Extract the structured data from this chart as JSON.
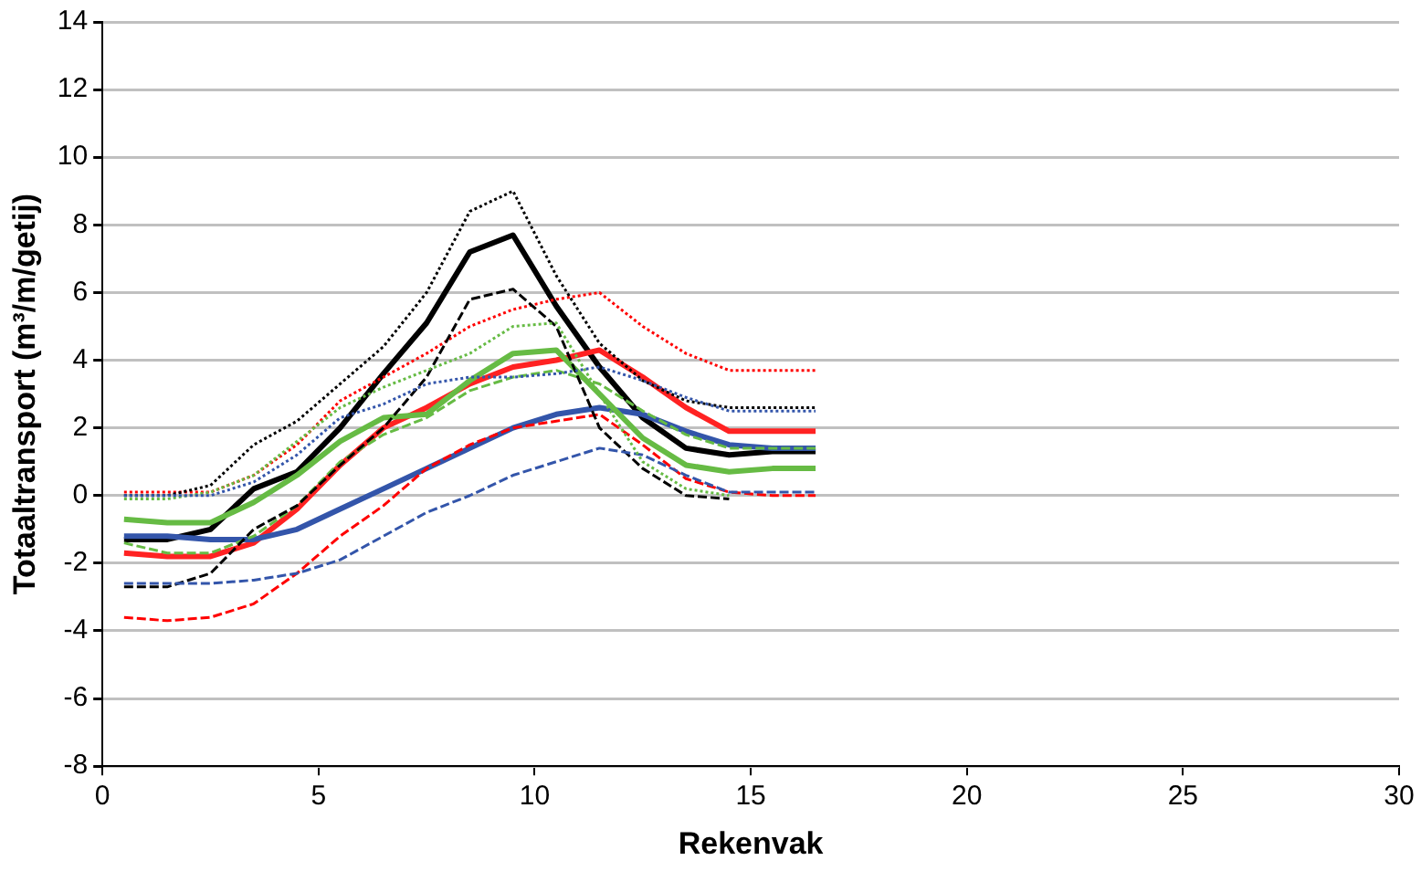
{
  "chart_data": {
    "type": "line",
    "xlabel": "Rekenvak",
    "ylabel": "Totaaltransport (m³/m/getij)",
    "x": [
      0.5,
      1.5,
      2.5,
      3.5,
      4.5,
      5.5,
      6.5,
      7.5,
      8.5,
      9.5,
      10.5,
      11.5,
      12.5,
      13.5,
      14.5,
      15.5,
      16.5
    ],
    "xlim": [
      0,
      30
    ],
    "xticks": [
      0,
      5,
      10,
      15,
      20,
      25,
      30
    ],
    "ylim": [
      -8,
      14
    ],
    "yticks": [
      -8,
      -6,
      -4,
      -2,
      0,
      2,
      4,
      6,
      8,
      10,
      12,
      14
    ],
    "grid": "y",
    "legend": false,
    "marker": "none",
    "series": [
      {
        "color": "#3355aa",
        "line_style": "dotted",
        "values": [
          0,
          0,
          0,
          0.4,
          1.2,
          2.3,
          2.7,
          3.3,
          3.5,
          3.5,
          3.6,
          3.8,
          3.4,
          2.9,
          2.5,
          2.5,
          2.5
        ]
      },
      {
        "color": "#66bb44",
        "line_style": "dotted",
        "values": [
          -0.1,
          -0.1,
          0.1,
          0.6,
          1.6,
          2.6,
          3.2,
          3.7,
          4.2,
          5.0,
          5.1,
          3.0,
          1.0,
          0.2,
          0.0,
          null,
          null
        ]
      },
      {
        "color": "#3355aa",
        "line_style": "dashed",
        "values": [
          -2.6,
          -2.6,
          -2.6,
          -2.5,
          -2.3,
          -1.9,
          -1.2,
          -0.5,
          0,
          0.6,
          1.0,
          1.4,
          1.2,
          0.6,
          0.1,
          0.1,
          0.1
        ]
      },
      {
        "color": "#000000",
        "line_style": "dotted",
        "values": [
          0,
          0,
          0.3,
          1.5,
          2.2,
          3.3,
          4.4,
          6.0,
          8.4,
          9.0,
          6.5,
          4.5,
          3.4,
          2.8,
          2.6,
          2.6,
          2.6
        ]
      },
      {
        "color": "#000000",
        "line_style": "dashed",
        "values": [
          -2.7,
          -2.7,
          -2.3,
          -1.0,
          -0.3,
          0.9,
          2.0,
          3.5,
          5.8,
          6.1,
          5.0,
          2.0,
          0.8,
          0.0,
          -0.1,
          null,
          null
        ]
      },
      {
        "color": "#ff0000",
        "line_style": "dotted",
        "values": [
          0.1,
          0.1,
          0.1,
          0.6,
          1.5,
          2.8,
          3.5,
          4.2,
          5.0,
          5.5,
          5.8,
          6.0,
          5.0,
          4.2,
          3.7,
          3.7,
          3.7
        ]
      },
      {
        "color": "#ff0000",
        "line_style": "dashed",
        "values": [
          -3.6,
          -3.7,
          -3.6,
          -3.2,
          -2.3,
          -1.2,
          -0.3,
          0.8,
          1.5,
          2.0,
          2.2,
          2.4,
          1.5,
          0.5,
          0.1,
          0.0,
          0.0
        ]
      },
      {
        "color": "#66bb44",
        "line_style": "dashed",
        "values": [
          -1.4,
          -1.7,
          -1.7,
          -1.2,
          -0.3,
          1.0,
          1.8,
          2.3,
          3.1,
          3.5,
          3.7,
          3.3,
          2.5,
          1.8,
          1.4,
          1.4,
          1.4
        ]
      },
      {
        "color": "#66bb44",
        "line_style": "solid",
        "values": [
          -0.7,
          -0.8,
          -0.8,
          -0.2,
          0.6,
          1.6,
          2.3,
          2.4,
          3.4,
          4.2,
          4.3,
          3.0,
          1.7,
          0.9,
          0.7,
          0.8,
          0.8
        ]
      },
      {
        "color": "#3355aa",
        "line_style": "solid",
        "values": [
          -1.2,
          -1.2,
          -1.3,
          -1.3,
          -1.0,
          -0.4,
          0.2,
          0.8,
          1.4,
          2.0,
          2.4,
          2.6,
          2.4,
          1.9,
          1.5,
          1.4,
          1.4
        ]
      },
      {
        "color": "#ff2222",
        "line_style": "solid",
        "values": [
          -1.7,
          -1.8,
          -1.8,
          -1.4,
          -0.4,
          0.9,
          2.0,
          2.6,
          3.3,
          3.8,
          4.0,
          4.3,
          3.5,
          2.6,
          1.9,
          1.9,
          1.9
        ]
      },
      {
        "color": "#000000",
        "line_style": "solid",
        "values": [
          -1.3,
          -1.3,
          -1.0,
          0.2,
          0.7,
          2.0,
          3.6,
          5.1,
          7.2,
          7.7,
          5.6,
          3.8,
          2.3,
          1.4,
          1.2,
          1.3,
          1.3
        ]
      }
    ]
  }
}
